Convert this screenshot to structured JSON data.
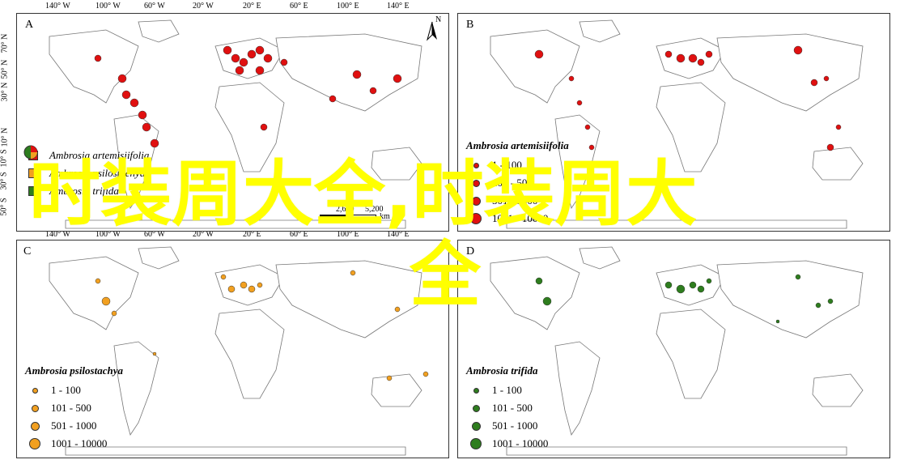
{
  "top_longitudes": [
    "140° W",
    "100° W",
    "60° W",
    "20° W",
    "20° E",
    "60° E",
    "100° E",
    "140° E"
  ],
  "bottom_longitudes": [
    "140° W",
    "100° W",
    "60° W",
    "20° W",
    "20° E",
    "60° E",
    "100° E",
    "140° E"
  ],
  "left_latitudes": [
    "70° N",
    "50° N",
    "30° N",
    "10° N",
    "10° S",
    "30° S",
    "50° S"
  ],
  "panels": {
    "A": {
      "label": "A",
      "legend_items": [
        "Ambrosia artemisiifolia",
        "Ambrosia psilostachya",
        "Ambrosia trifida"
      ]
    },
    "B": {
      "label": "B",
      "legend_title": "Ambrosia artemisiifolia",
      "classes": [
        "1 - 100",
        "101 - 500",
        "501 - 1000",
        "1001 - 10000"
      ],
      "color": "#e01010"
    },
    "C": {
      "label": "C",
      "legend_title": "Ambrosia psilostachya",
      "classes": [
        "1 - 100",
        "101 - 500",
        "501 - 1000",
        "1001 - 10000"
      ],
      "color": "#f2a020"
    },
    "D": {
      "label": "D",
      "legend_title": "Ambrosia trifida",
      "classes": [
        "1 - 100",
        "101 - 500",
        "501 - 1000",
        "1001 - 10000"
      ],
      "color": "#2e7d1e"
    }
  },
  "scale": {
    "labels": [
      "2,600",
      "5,200"
    ],
    "unit": "km"
  },
  "north_label": "N",
  "overlay_text": {
    "line1": "时装周大全,时装周大",
    "line2": "全"
  },
  "colors": {
    "overlay": "#ffff00",
    "border": "#333333",
    "land": "#ffffff"
  }
}
